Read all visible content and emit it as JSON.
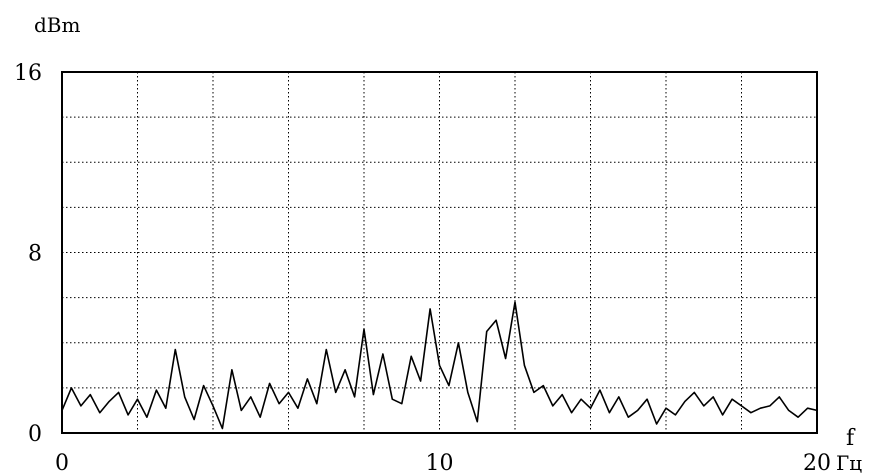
{
  "chart_data": {
    "type": "line",
    "title": "",
    "ylabel": "dBm",
    "xlabel": "f",
    "x_unit": "Гц",
    "xlim": [
      0,
      20
    ],
    "ylim": [
      0,
      16
    ],
    "x_ticks": [
      {
        "value": 0,
        "label": "0"
      },
      {
        "value": 10,
        "label": "10"
      },
      {
        "value": 20,
        "label": "20"
      }
    ],
    "y_ticks": [
      {
        "value": 0,
        "label": "0"
      },
      {
        "value": 8,
        "label": "8"
      },
      {
        "value": 16,
        "label": "16"
      }
    ],
    "grid": true,
    "grid_x_step": 2,
    "grid_y_step": 2,
    "line_color": "#000000",
    "series": [
      {
        "x": [
          0.0,
          0.25,
          0.5,
          0.75,
          1.0,
          1.25,
          1.5,
          1.75,
          2.0,
          2.25,
          2.5,
          2.75,
          3.0,
          3.25,
          3.5,
          3.75,
          4.0,
          4.25,
          4.5,
          4.75,
          5.0,
          5.25,
          5.5,
          5.75,
          6.0,
          6.25,
          6.5,
          6.75,
          7.0,
          7.25,
          7.5,
          7.75,
          8.0,
          8.25,
          8.5,
          8.75,
          9.0,
          9.25,
          9.5,
          9.75,
          10.0,
          10.25,
          10.5,
          10.75,
          11.0,
          11.25,
          11.5,
          11.75,
          12.0,
          12.25,
          12.5,
          12.75,
          13.0,
          13.25,
          13.5,
          13.75,
          14.0,
          14.25,
          14.5,
          14.75,
          15.0,
          15.25,
          15.5,
          15.75,
          16.0,
          16.25,
          16.5,
          16.75,
          17.0,
          17.25,
          17.5,
          17.75,
          18.0,
          18.25,
          18.5,
          18.75,
          19.0,
          19.25,
          19.5,
          19.75,
          20.0
        ],
        "values": [
          1.0,
          2.0,
          1.2,
          1.7,
          0.9,
          1.4,
          1.8,
          0.8,
          1.5,
          0.7,
          1.9,
          1.1,
          3.7,
          1.6,
          0.6,
          2.1,
          1.2,
          0.2,
          2.8,
          1.0,
          1.6,
          0.7,
          2.2,
          1.3,
          1.8,
          1.1,
          2.4,
          1.3,
          3.7,
          1.8,
          2.8,
          1.6,
          4.6,
          1.7,
          3.5,
          1.5,
          1.3,
          3.4,
          2.3,
          5.5,
          3.0,
          2.1,
          4.0,
          1.8,
          0.5,
          4.5,
          5.0,
          3.3,
          5.8,
          3.0,
          1.8,
          2.1,
          1.2,
          1.7,
          0.9,
          1.5,
          1.1,
          1.9,
          0.9,
          1.6,
          0.7,
          1.0,
          1.5,
          0.4,
          1.1,
          0.8,
          1.4,
          1.8,
          1.2,
          1.6,
          0.8,
          1.5,
          1.2,
          0.9,
          1.1,
          1.2,
          1.6,
          1.0,
          0.7,
          1.1,
          1.0
        ]
      }
    ]
  }
}
